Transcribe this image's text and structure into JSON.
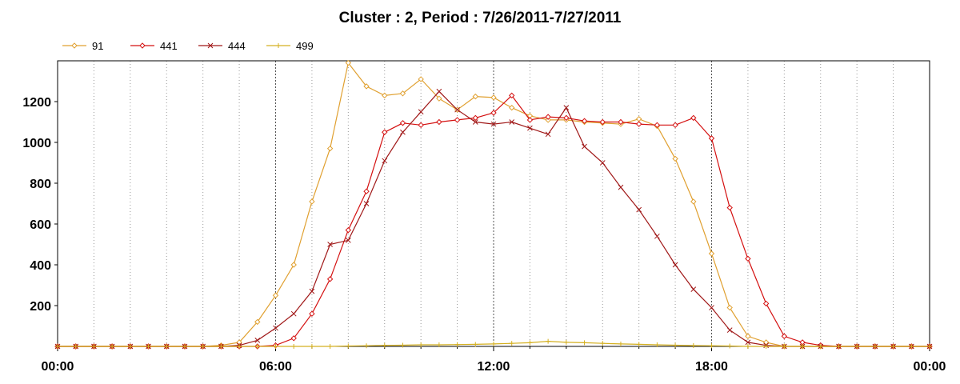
{
  "chart_data": {
    "type": "line",
    "title": "Cluster : 2, Period : 7/26/2011-7/27/2011",
    "xlabel": "",
    "ylabel": "",
    "x_range_hours": [
      0,
      24
    ],
    "ylim": [
      0,
      1400
    ],
    "x_tick_labels": [
      "00:00",
      "06:00",
      "12:00",
      "18:00",
      "00:00"
    ],
    "y_ticks": [
      200,
      400,
      600,
      800,
      1000,
      1200
    ],
    "grid": "vertical dotted lines every hour",
    "legend_position": "top-left",
    "series": [
      {
        "name": "91",
        "color": "#e0a030",
        "marker": "diamond",
        "x": [
          0,
          0.5,
          1,
          1.5,
          2,
          2.5,
          3,
          3.5,
          4,
          4.5,
          5,
          5.5,
          6,
          6.5,
          7,
          7.5,
          8,
          8.5,
          9,
          9.5,
          10,
          10.5,
          11,
          11.5,
          12,
          12.5,
          13,
          13.5,
          14,
          14.5,
          15,
          15.5,
          16,
          16.5,
          17,
          17.5,
          18,
          18.5,
          19,
          19.5,
          20,
          20.5,
          21,
          21.5,
          22,
          22.5,
          23,
          23.5,
          24
        ],
        "y": [
          0,
          0,
          0,
          0,
          0,
          0,
          0,
          0,
          0,
          5,
          20,
          120,
          250,
          400,
          710,
          970,
          1390,
          1275,
          1230,
          1240,
          1310,
          1215,
          1160,
          1225,
          1220,
          1170,
          1130,
          1110,
          1110,
          1100,
          1095,
          1090,
          1115,
          1080,
          920,
          710,
          455,
          190,
          50,
          20,
          0,
          0,
          0,
          0,
          0,
          0,
          0,
          0,
          0
        ]
      },
      {
        "name": "441",
        "color": "#d41010",
        "marker": "diamond",
        "x": [
          0,
          0.5,
          1,
          1.5,
          2,
          2.5,
          3,
          3.5,
          4,
          4.5,
          5,
          5.5,
          6,
          6.5,
          7,
          7.5,
          8,
          8.5,
          9,
          9.5,
          10,
          10.5,
          11,
          11.5,
          12,
          12.5,
          13,
          13.5,
          14,
          14.5,
          15,
          15.5,
          16,
          16.5,
          17,
          17.5,
          18,
          18.5,
          19,
          19.5,
          20,
          20.5,
          21,
          21.5,
          22,
          22.5,
          23,
          23.5,
          24
        ],
        "y": [
          0,
          0,
          0,
          0,
          0,
          0,
          0,
          0,
          0,
          0,
          0,
          0,
          5,
          40,
          160,
          330,
          570,
          760,
          1050,
          1095,
          1085,
          1100,
          1110,
          1120,
          1145,
          1230,
          1110,
          1125,
          1120,
          1105,
          1100,
          1100,
          1090,
          1085,
          1085,
          1120,
          1020,
          680,
          430,
          210,
          50,
          20,
          5,
          0,
          0,
          0,
          0,
          0,
          0
        ]
      },
      {
        "name": "444",
        "color": "#a01818",
        "marker": "x",
        "x": [
          0,
          0.5,
          1,
          1.5,
          2,
          2.5,
          3,
          3.5,
          4,
          4.5,
          5,
          5.5,
          6,
          6.5,
          7,
          7.5,
          8,
          8.5,
          9,
          9.5,
          10,
          10.5,
          11,
          11.5,
          12,
          12.5,
          13,
          13.5,
          14,
          14.5,
          15,
          15.5,
          16,
          16.5,
          17,
          17.5,
          18,
          18.5,
          19,
          19.5,
          20,
          20.5,
          21,
          21.5,
          22,
          22.5,
          23,
          23.5,
          24
        ],
        "y": [
          0,
          0,
          0,
          0,
          0,
          0,
          0,
          0,
          0,
          0,
          5,
          30,
          90,
          160,
          270,
          500,
          520,
          700,
          910,
          1050,
          1150,
          1250,
          1160,
          1100,
          1090,
          1100,
          1070,
          1040,
          1170,
          980,
          900,
          780,
          670,
          540,
          400,
          280,
          190,
          80,
          20,
          5,
          0,
          0,
          0,
          0,
          0,
          0,
          0,
          0,
          0
        ]
      },
      {
        "name": "499",
        "color": "#d4b020",
        "marker": "plus",
        "x": [
          0,
          0.5,
          1,
          1.5,
          2,
          2.5,
          3,
          3.5,
          4,
          4.5,
          5,
          5.5,
          6,
          6.5,
          7,
          7.5,
          8,
          8.5,
          9,
          9.5,
          10,
          10.5,
          11,
          11.5,
          12,
          12.5,
          13,
          13.5,
          14,
          14.5,
          15,
          15.5,
          16,
          16.5,
          17,
          17.5,
          18,
          18.5,
          19,
          19.5,
          20,
          20.5,
          21,
          21.5,
          22,
          22.5,
          23,
          23.5,
          24
        ],
        "y": [
          0,
          0,
          0,
          0,
          0,
          0,
          0,
          0,
          0,
          0,
          0,
          0,
          0,
          0,
          0,
          0,
          2,
          3,
          5,
          6,
          8,
          8,
          9,
          10,
          12,
          15,
          18,
          25,
          20,
          18,
          15,
          12,
          10,
          8,
          6,
          4,
          3,
          2,
          0,
          0,
          0,
          0,
          0,
          0,
          0,
          0,
          0,
          0,
          0
        ]
      }
    ]
  }
}
